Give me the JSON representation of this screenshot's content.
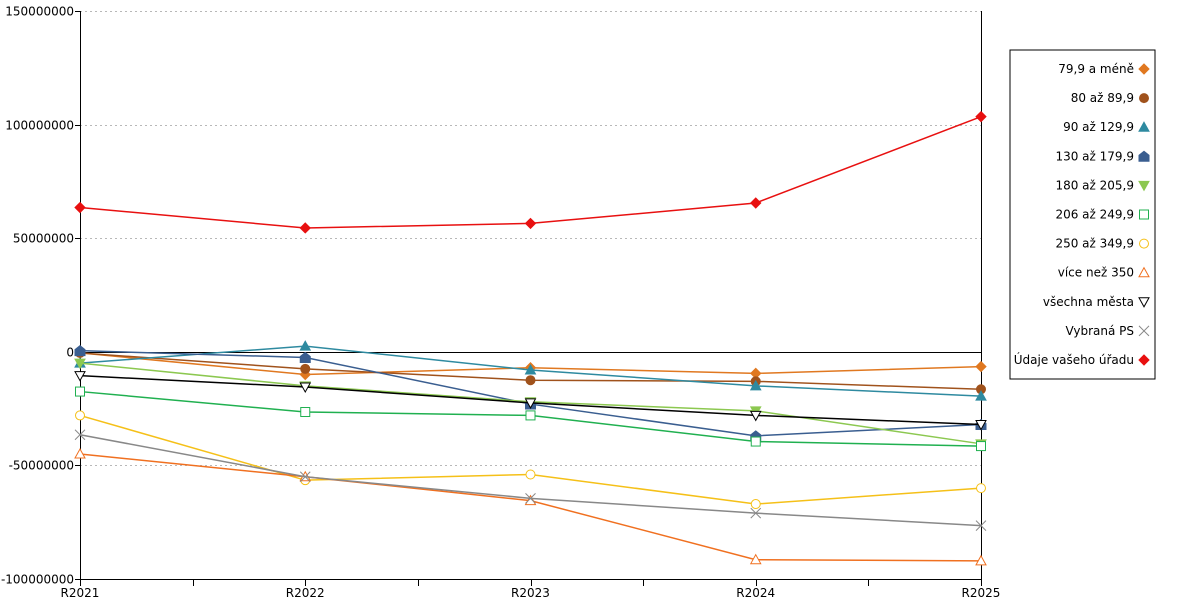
{
  "chart_data": {
    "type": "line",
    "title": "",
    "xlabel": "",
    "ylabel": "",
    "ylim": [
      -100000000,
      150000000
    ],
    "yticks": [
      {
        "value": 150000000,
        "label": "150000000"
      },
      {
        "value": 100000000,
        "label": "100000000"
      },
      {
        "value": 50000000,
        "label": "50000000"
      },
      {
        "value": 0,
        "label": "0"
      },
      {
        "value": -50000000,
        "label": "-50000000"
      },
      {
        "value": -100000000,
        "label": "-100000000"
      }
    ],
    "categories": [
      "R2021",
      "R2022",
      "R2023",
      "R2024",
      "R2025"
    ],
    "grid": true,
    "legend": "right",
    "series": [
      {
        "name": "79,9 a méně",
        "color": "#e07820",
        "marker": "diamond",
        "values": [
          -500000,
          -10000000,
          -7000000,
          -9500000,
          -6500000
        ]
      },
      {
        "name": "80 až 89,9",
        "color": "#a0521c",
        "marker": "circle-filled",
        "values": [
          -500000,
          -7500000,
          -12500000,
          -13000000,
          -16500000
        ]
      },
      {
        "name": "90 až 129,9",
        "color": "#2e8aa0",
        "marker": "triangle-filled",
        "values": [
          -5000000,
          2500000,
          -8000000,
          -15000000,
          -19500000
        ]
      },
      {
        "name": "130 až 179,9",
        "color": "#3a5e90",
        "marker": "pentagon-filled",
        "values": [
          500000,
          -2500000,
          -23000000,
          -37000000,
          -32000000
        ]
      },
      {
        "name": "180 až 205,9",
        "color": "#8cc850",
        "marker": "triangle-down-filled",
        "values": [
          -5000000,
          -15000000,
          -22000000,
          -26000000,
          -40500000
        ]
      },
      {
        "name": "206 až 249,9",
        "color": "#20b050",
        "marker": "square-open",
        "values": [
          -17500000,
          -26500000,
          -28000000,
          -39500000,
          -41500000
        ]
      },
      {
        "name": "250 až 349,9",
        "color": "#f5c018",
        "marker": "circle-open",
        "values": [
          -28000000,
          -56500000,
          -54000000,
          -67000000,
          -60000000
        ]
      },
      {
        "name": "více než 350",
        "color": "#f07020",
        "marker": "triangle-open",
        "values": [
          -45000000,
          -55000000,
          -65500000,
          -91500000,
          -92000000
        ]
      },
      {
        "name": "všechna města",
        "color": "#000000",
        "marker": "triangle-down-open",
        "values": [
          -10500000,
          -15500000,
          -22500000,
          -28000000,
          -32000000
        ]
      },
      {
        "name": "Vybraná PS",
        "color": "#888888",
        "marker": "x",
        "values": [
          -36500000,
          -55000000,
          -64500000,
          -71000000,
          -76500000
        ]
      },
      {
        "name": "Údaje vašeho úřadu",
        "color": "#e81010",
        "marker": "diamond",
        "values": [
          63500000,
          54500000,
          56500000,
          65500000,
          103500000
        ]
      }
    ]
  }
}
